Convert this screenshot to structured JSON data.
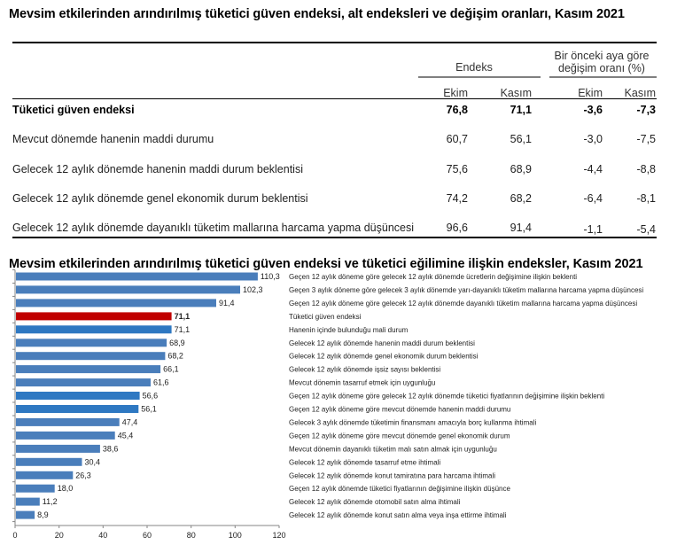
{
  "table": {
    "title": "Mevsim etkilerinden arındırılmış tüketici güven endeksi, alt endeksleri ve değişim oranları, Kasım 2021",
    "group_headers": {
      "index": "Endeks",
      "change_line1": "Bir önceki aya göre",
      "change_line2": "değişim oranı (%)"
    },
    "columns": [
      "Ekim",
      "Kasım",
      "Ekim",
      "Kasım"
    ],
    "rows": [
      {
        "label": "Tüketici güven endeksi",
        "values": [
          "76,8",
          "71,1",
          "-3,6",
          "-7,3"
        ],
        "bold": true
      },
      {
        "label": "Mevcut dönemde hanenin maddi durumu",
        "values": [
          "60,7",
          "56,1",
          "-3,0",
          "-7,5"
        ]
      },
      {
        "label": "Gelecek 12 aylık dönemde hanenin maddi durum beklentisi",
        "values": [
          "75,6",
          "68,9",
          "-4,4",
          "-8,8"
        ]
      },
      {
        "label": "Gelecek 12 aylık dönemde genel ekonomik durum beklentisi",
        "values": [
          "74,2",
          "68,2",
          "-6,4",
          "-8,1"
        ]
      },
      {
        "label": "Gelecek 12 aylık dönemde dayanıklı tüketim mallarına harcama yapma düşüncesi",
        "values": [
          "96,6",
          "91,4",
          "-1,1",
          "-5,4"
        ]
      }
    ]
  },
  "chart_data": {
    "type": "bar",
    "orientation": "horizontal",
    "title": "Mevsim etkilerinden arındırılmış tüketici güven endeksi ve tüketici eğilimine ilişkin endeksler, Kasım 2021",
    "xlabel": "",
    "ylabel": "",
    "xlim": [
      0,
      120
    ],
    "xticks": [
      "0",
      "20",
      "40",
      "60",
      "80",
      "100",
      "120"
    ],
    "grid": false,
    "legend": "none",
    "colors": {
      "default": "#4a7ebb",
      "highlight": "#c00000",
      "alt": "#2e78c2"
    },
    "categories": [
      "Geçen 12 aylık döneme göre gelecek 12 aylık dönemde ücretlerin değişimine ilişkin beklenti",
      "Geçen 3 aylık döneme göre gelecek 3 aylık dönemde yarı-dayanıklı tüketim mallarına harcama yapma düşüncesi",
      "Geçen 12 aylık döneme göre gelecek 12 aylık dönemde  dayanıklı tüketim mallarına harcama yapma düşüncesi",
      "Tüketici güven endeksi",
      "Hanenin içinde bulunduğu mali durum",
      "Gelecek 12 aylık dönemde hanenin maddi durum beklentisi",
      "Gelecek 12 aylık dönemde genel ekonomik durum beklentisi",
      "Gelecek 12 aylık dönemde işsiz sayısı beklentisi",
      "Mevcut dönemin tasarruf etmek için uygunluğu",
      "Geçen 12 aylık döneme göre gelecek 12 aylık dönemde tüketici fiyatlarının değişimine ilişkin beklenti",
      "Geçen 12 aylık döneme göre mevcut dönemde hanenin maddi durumu",
      "Gelecek 3 aylık dönemde tüketimin finansmanı amacıyla borç kullanma ihtimali",
      "Geçen 12 aylık döneme göre mevcut dönemde genel ekonomik durum",
      "Mevcut dönemin dayanıklı tüketim malı satın almak için uygunluğu",
      "Gelecek 12 aylık dönemde tasarruf etme ihtimali",
      "Gelecek 12 aylık dönemde konut tamiratına para harcama ihtimali",
      "Geçen 12 aylık dönemde tüketici fiyatlarının değişimine ilişkin düşünce",
      "Gelecek 12 aylık dönemde otomobil satın alma ihtimali",
      "Gelecek 12 aylık dönemde konut satın alma veya inşa ettirme ihtimali"
    ],
    "values": [
      110.3,
      102.3,
      91.4,
      71.1,
      71.1,
      68.9,
      68.2,
      66.1,
      61.6,
      56.6,
      56.1,
      47.4,
      45.4,
      38.6,
      30.4,
      26.3,
      18.0,
      11.2,
      8.9
    ],
    "value_labels": [
      "110,3",
      "102,3",
      "91,4",
      "71,1",
      "71,1",
      "68,9",
      "68,2",
      "66,1",
      "61,6",
      "56,6",
      "56,1",
      "47,4",
      "45,4",
      "38,6",
      "30,4",
      "26,3",
      "18,0",
      "11,2",
      "8,9"
    ],
    "highlight_index": 3,
    "alt_color_indices": [
      4,
      9,
      10
    ]
  }
}
